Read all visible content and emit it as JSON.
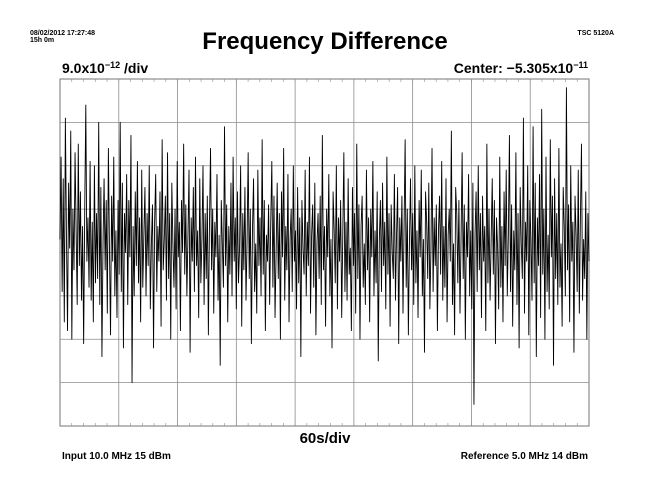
{
  "header": {
    "timestamp": "08/02/2012 17:27:48",
    "duration": "15h 0m",
    "instrument": "TSC 5120A",
    "title": "Frequency Difference"
  },
  "scale": {
    "y_mantissa": "9.0x10",
    "y_exponent": "−12",
    "y_unit": " /div",
    "center_prefix": "Center: −5.305x10",
    "center_exponent": "−11"
  },
  "x_scale": "60s/div",
  "footer": {
    "input": "Input 10.0 MHz 15 dBm",
    "reference": "Reference 5.0 MHz 14 dBm"
  },
  "colors": {
    "trace": "#000000",
    "grid": "#8c8c8c",
    "background": "#ffffff"
  },
  "chart_data": {
    "type": "line",
    "title": "Frequency Difference",
    "xlabel": "60s/div",
    "ylabel": "9.0x10⁻¹² /div",
    "grid": true,
    "x_divisions": 9,
    "y_divisions": 8,
    "x_range_divisions": [
      0,
      9
    ],
    "y_range_divisions": [
      -4,
      4
    ],
    "y_center": "−5.305x10⁻¹¹",
    "series": [
      {
        "unit": "divisions from center",
        "values": [
          0.3,
          2.2,
          -0.9,
          1.7,
          -1.6,
          3.1,
          0.4,
          -1.8,
          1.6,
          0.1,
          2.8,
          -2.0,
          1.0,
          -0.4,
          2.3,
          0.5,
          -1.2,
          2.5,
          -0.3,
          1.4,
          -1.1,
          0.6,
          -2.1,
          1.0,
          3.4,
          -0.2,
          0.8,
          -0.8,
          2.1,
          -1.1,
          0.7,
          -1.6,
          2.0,
          -0.7,
          0.9,
          -0.6,
          3.0,
          -1.2,
          1.5,
          -2.4,
          0.2,
          1.7,
          -0.4,
          1.2,
          -1.4,
          2.4,
          0.1,
          -1.9,
          1.3,
          -0.2,
          2.2,
          -1.0,
          0.5,
          -1.5,
          1.2,
          -0.5,
          3.0,
          -0.9,
          1.6,
          -2.2,
          0.9,
          0.0,
          1.8,
          -1.2,
          1.2,
          -0.1,
          2.7,
          -3.0,
          0.6,
          -1.0,
          1.4,
          -0.3,
          2.1,
          -0.7,
          0.8,
          -1.6,
          1.9,
          -0.8,
          0.4,
          1.5,
          -1.0,
          0.9,
          -0.3,
          2.0,
          -1.3,
          0.2,
          1.1,
          -2.2,
          0.7,
          1.8,
          -0.9,
          0.6,
          -0.2,
          1.4,
          -1.7,
          2.6,
          -0.4,
          0.3,
          1.3,
          -1.1,
          2.3,
          -0.6,
          0.9,
          -2.0,
          1.6,
          0.2,
          -0.8,
          1.0,
          -1.3,
          2.1,
          -0.1,
          0.7,
          -1.8,
          1.2,
          0.0,
          2.5,
          -0.5,
          1.1,
          -1.0,
          0.4,
          1.9,
          -2.3,
          0.8,
          -0.2,
          1.5,
          -0.9,
          2.2,
          -0.3,
          0.5,
          -1.5,
          1.7,
          -0.7,
          0.3,
          2.0,
          -1.2,
          0.9,
          -0.6,
          1.3,
          -1.9,
          0.6,
          2.4,
          -0.4,
          1.0,
          -1.4,
          0.7,
          -0.1,
          1.8,
          -1.1,
          0.4,
          -2.6,
          1.2,
          0.2,
          -0.8,
          2.9,
          -0.3,
          1.1,
          -1.6,
          0.6,
          -0.5,
          1.6,
          -1.0,
          2.2,
          -0.2,
          0.8,
          -1.3,
          1.4,
          -0.7,
          0.1,
          2.0,
          -1.7,
          0.9,
          -0.4,
          1.5,
          -1.1,
          0.3,
          2.3,
          -0.6,
          1.0,
          -2.1,
          0.5,
          1.7,
          -0.9,
          0.2,
          -1.4,
          1.9,
          -0.3,
          0.8,
          -1.0,
          2.6,
          -0.5,
          1.2,
          -1.8,
          0.4,
          -0.2,
          1.1,
          -1.2,
          0.7,
          2.1,
          -0.8,
          1.3,
          -1.5,
          0.0,
          1.6,
          -0.6,
          0.9,
          -2.0,
          1.4,
          -0.1,
          2.4,
          -1.1,
          0.6,
          -0.4,
          1.8,
          -1.6,
          0.3,
          1.0,
          -0.9,
          2.0,
          -0.2,
          0.5,
          -1.3,
          1.5,
          -0.7,
          0.8,
          -2.4,
          1.2,
          0.1,
          -0.5,
          1.9,
          -1.0,
          0.7,
          -0.3,
          2.2,
          -1.4,
          0.4,
          1.1,
          -0.8,
          1.6,
          -1.9,
          0.2,
          0.9,
          -0.6,
          1.3,
          -1.2,
          2.7,
          -0.4,
          0.6,
          -1.7,
          1.0,
          -0.1,
          1.8,
          -1.0,
          0.3,
          -2.2,
          1.4,
          0.5,
          -0.7,
          2.0,
          -1.3,
          0.8,
          -0.2,
          1.2,
          -1.5,
          0.4,
          2.3,
          -0.9,
          0.7,
          -1.1,
          1.7,
          -0.5,
          0.1,
          -1.8,
          1.5,
          -0.3,
          0.9,
          -1.4,
          2.5,
          -0.6,
          1.1,
          -2.0,
          0.6,
          1.3,
          -0.8,
          0.2,
          -1.2,
          1.9,
          -0.4,
          0.8,
          -1.6,
          1.0,
          -0.1,
          2.1,
          -1.0,
          0.5,
          -0.7,
          1.4,
          -2.5,
          0.3,
          1.2,
          -0.9,
          1.6,
          -0.3,
          0.7,
          -1.3,
          2.2,
          -0.5,
          0.9,
          -1.7,
          1.1,
          0.0,
          -0.6,
          1.8,
          -1.1,
          0.4,
          1.5,
          -2.1,
          0.8,
          -0.2,
          1.3,
          -1.4,
          0.6,
          2.6,
          -0.8,
          1.0,
          -1.9,
          0.2,
          1.7,
          -0.4,
          0.9,
          -1.2,
          2.0,
          -0.7,
          0.5,
          -1.5,
          1.2,
          -0.1,
          1.9,
          -1.0,
          0.3,
          -2.3,
          1.4,
          0.7,
          -0.6,
          1.6,
          -1.3,
          0.1,
          2.4,
          -0.9,
          0.8,
          -0.3,
          1.1,
          -1.8,
          0.5,
          1.3,
          -0.5,
          2.1,
          -1.1,
          0.6,
          -0.8,
          1.7,
          -1.6,
          0.4,
          1.0,
          -0.2,
          2.8,
          -1.2,
          0.2,
          -1.9,
          1.5,
          0.9,
          -0.7,
          1.2,
          -1.4,
          0.3,
          2.3,
          -0.6,
          1.1,
          -2.0,
          0.7,
          -0.1,
          1.8,
          -1.0,
          0.5,
          -1.3,
          1.6,
          -3.5,
          0.4,
          1.4,
          -0.9,
          2.0,
          -0.4,
          0.9,
          -1.5,
          1.3,
          -0.2,
          0.6,
          -1.8,
          2.5,
          -0.7,
          1.0,
          -1.1,
          0.3,
          1.7,
          -0.5,
          1.2,
          -2.1,
          0.8,
          0.1,
          -1.3,
          2.2,
          -0.8,
          0.6,
          -1.6,
          1.4,
          -0.3,
          1.9,
          -1.0,
          0.4,
          2.7,
          -0.9,
          1.1,
          -1.7,
          0.5,
          -0.4,
          2.3,
          -1.2,
          0.9,
          -2.2,
          1.5,
          0.2,
          -0.6,
          3.1,
          -1.4,
          0.7,
          -0.2,
          2.0,
          -1.9,
          1.2,
          0.3,
          -1.1,
          2.9,
          -0.7,
          1.6,
          -2.4,
          0.8,
          -0.3,
          1.8,
          -1.5,
          3.3,
          -0.5,
          1.0,
          -2.0,
          2.2,
          -0.9,
          0.4,
          -1.3,
          2.6,
          -0.1,
          1.3,
          -2.6,
          1.7,
          -0.6,
          0.9,
          -1.2,
          2.4,
          -0.8,
          0.2,
          -1.7,
          1.5,
          0.6,
          -1.0,
          3.8,
          -0.4,
          1.1,
          -1.6,
          2.0,
          -0.2,
          0.7,
          -2.3,
          1.3,
          0.4,
          -0.9,
          1.9,
          -1.4,
          0.8,
          2.5,
          -1.1,
          0.3,
          -0.6,
          1.4,
          -2.0,
          0.9,
          -0.2
        ]
      }
    ]
  }
}
